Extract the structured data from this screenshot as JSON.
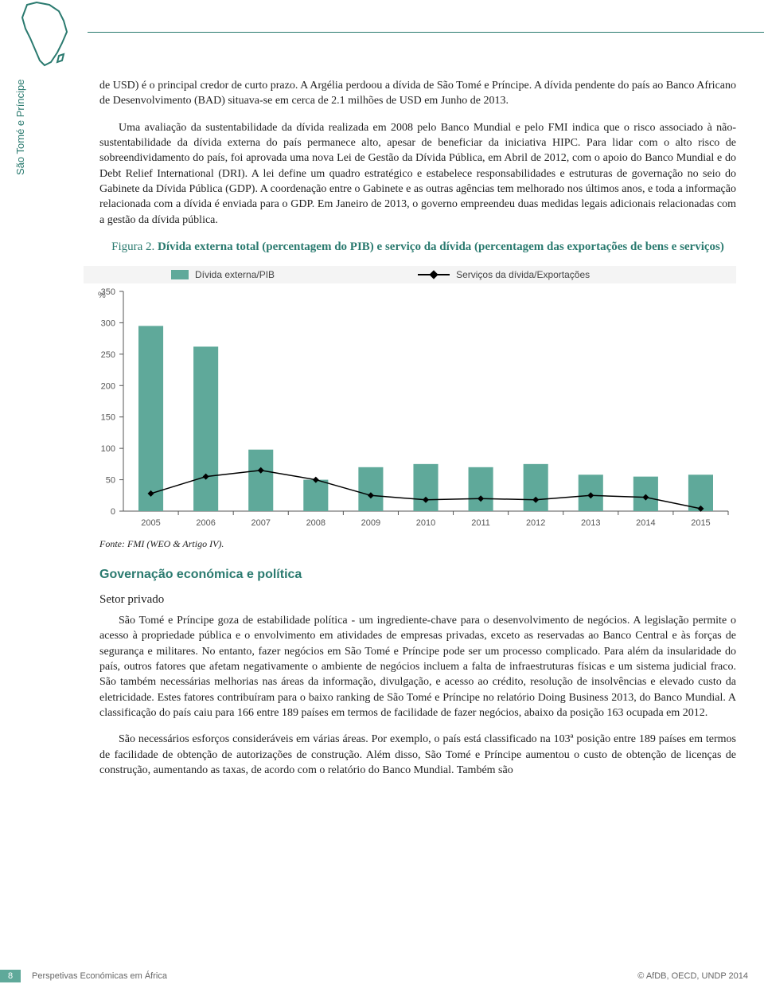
{
  "side_label": "São Tomé e Príncipe",
  "paragraphs": {
    "p1": "de USD) é o principal credor de curto prazo. A Argélia perdoou a dívida de São Tomé e Príncipe. A dívida pendente do país ao Banco Africano de Desenvolvimento (BAD) situava-se em cerca de 2.1 milhões de USD em Junho de 2013.",
    "p2": "Uma avaliação da sustentabilidade da dívida realizada em 2008 pelo Banco Mundial e pelo FMI indica que o risco associado à não-sustentabilidade da dívida externa do país permanece alto, apesar de beneficiar da iniciativa HIPC. Para lidar com o alto risco de sobreendividamento do país, foi aprovada uma nova Lei de Gestão da Dívida Pública, em Abril de 2012, com o apoio do Banco Mundial e do Debt Relief International (DRI). A lei define um quadro estratégico e estabelece responsabilidades e estruturas de governação no seio do Gabinete da Dívida Pública (GDP). A coordenação entre o Gabinete e as outras agências tem melhorado nos últimos anos, e toda a informação relacionada com a dívida é enviada para o GDP. Em Janeiro de 2013, o governo empreendeu duas medidas legais adicionais relacionadas com a gestão da dívida pública.",
    "p3": "São Tomé e Príncipe goza de estabilidade política - um ingrediente-chave para o desenvolvimento de negócios. A legislação permite o acesso à propriedade pública e o envolvimento em atividades de empresas privadas, exceto as reservadas ao Banco Central e às forças de segurança e militares. No entanto, fazer negócios em São Tomé e Príncipe pode ser um processo complicado. Para além da insularidade do país, outros fatores que afetam negativamente o ambiente de negócios incluem a falta de infraestruturas físicas e um sistema judicial fraco. São também necessárias melhorias nas áreas da informação, divulgação, e acesso ao crédito, resolução de insolvências e elevado custo da eletricidade. Estes fatores contribuíram para o baixo ranking de São Tomé e Príncipe no relatório Doing Business 2013, do Banco Mundial. A classificação do país caiu para 166 entre 189 países em termos de facilidade de fazer negócios, abaixo da posição 163 ocupada em 2012.",
    "p4": "São necessários esforços consideráveis em várias áreas. Por exemplo, o país está classificado na 103ª posição entre 189 países em termos de facilidade de obtenção de autorizações de construção. Além disso, São Tomé e Príncipe aumentou o custo de obtenção de licenças de construção, aumentando as taxas, de acordo com o relatório do Banco Mundial. Também são"
  },
  "figure": {
    "label": "Figura 2.",
    "title_bold": "Dívida externa total (percentagem do PIB) e serviço da dívida (percentagem das exportações de bens e serviços)",
    "legend_bar": "Dívida externa/PIB",
    "legend_line": "Serviços da dívida/Exportações",
    "y_unit": "%",
    "ylim": [
      0,
      350
    ],
    "ytick_step": 50,
    "categories": [
      "2005",
      "2006",
      "2007",
      "2008",
      "2009",
      "2010",
      "2011",
      "2012",
      "2013",
      "2014",
      "2015"
    ],
    "bar_values": [
      295,
      262,
      98,
      50,
      70,
      75,
      70,
      75,
      58,
      55,
      58
    ],
    "line_values": [
      28,
      55,
      65,
      50,
      25,
      18,
      20,
      18,
      25,
      22,
      4
    ],
    "bar_color": "#5fa99a",
    "line_color": "#000000",
    "grid_color": "#cccccc",
    "background": "#ffffff",
    "axis_fontsize": 11,
    "source_prefix": "Fonte:",
    "source": " FMI (WEO & Artigo IV)."
  },
  "headings": {
    "h2": "Governação económica e política",
    "h3": "Setor privado"
  },
  "footer": {
    "page": "8",
    "title": "Perspetivas Económicas em África",
    "copy": "© AfDB, OECD, UNDP 2014"
  }
}
